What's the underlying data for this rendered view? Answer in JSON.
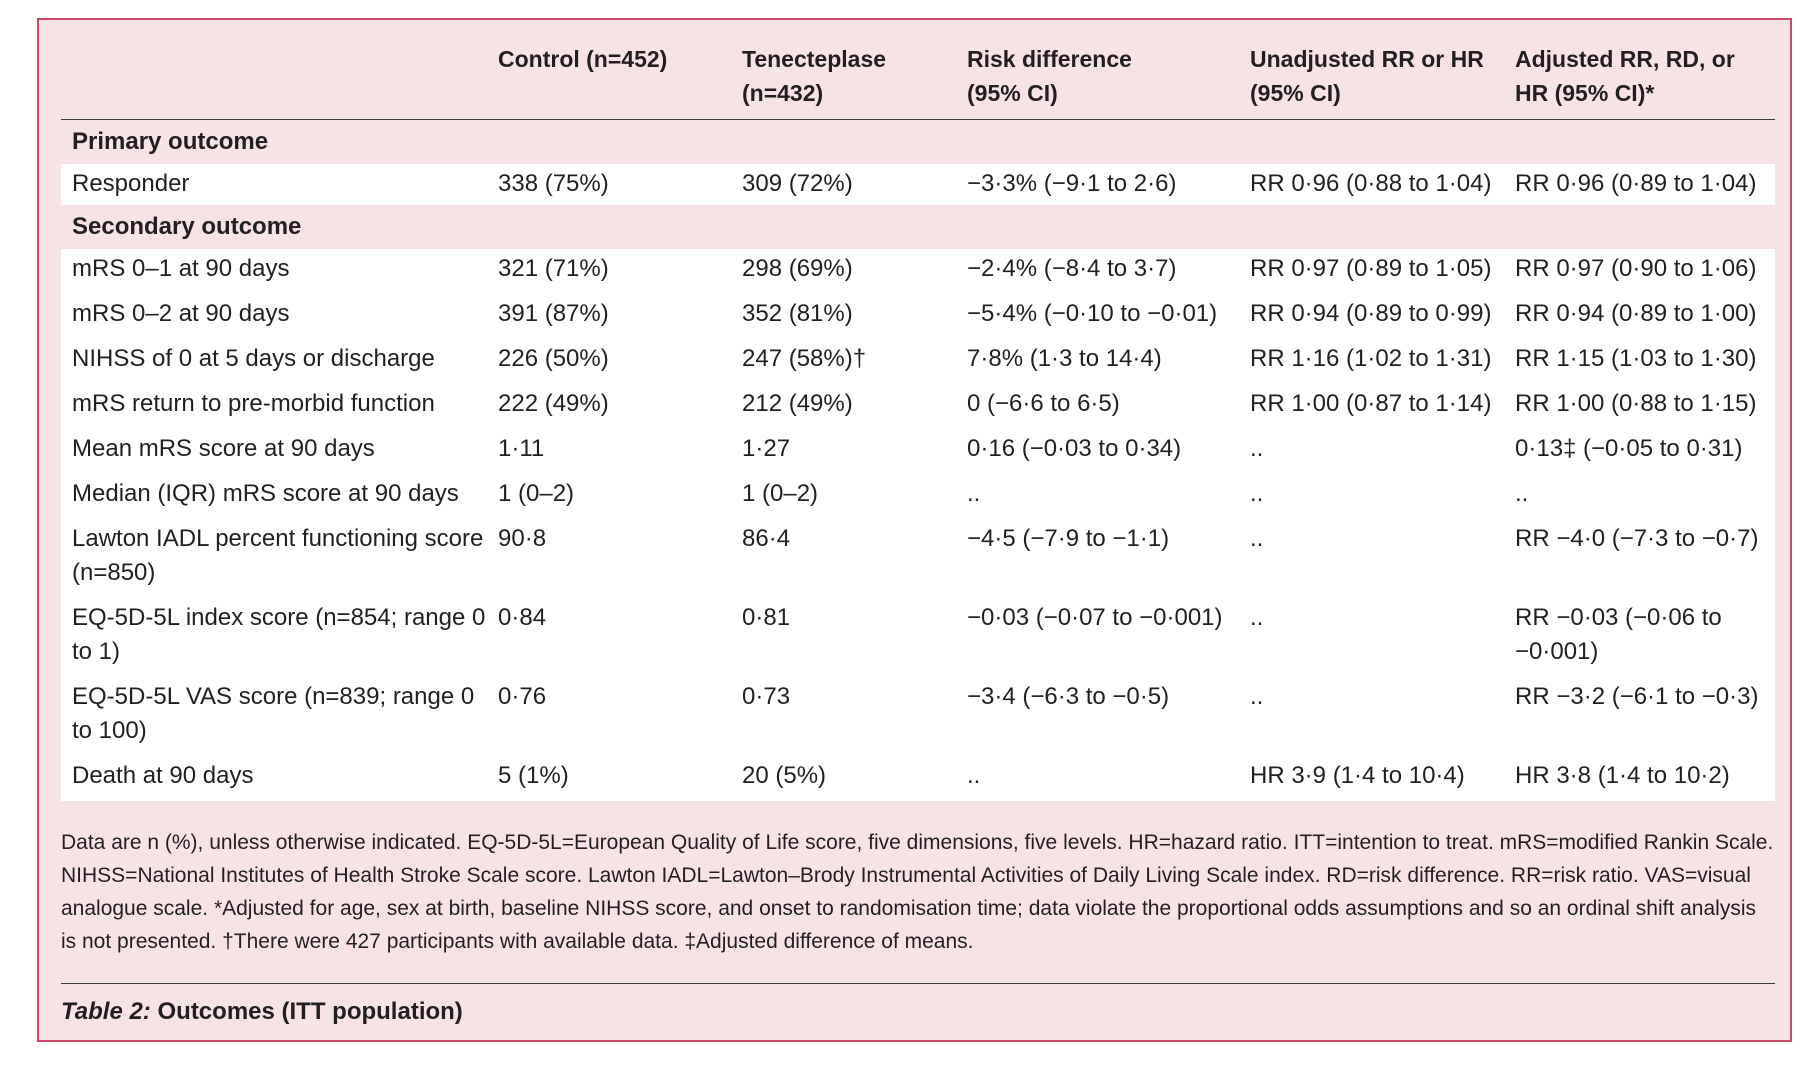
{
  "header": {
    "control": [
      "Control (n=452)",
      ""
    ],
    "tenecteplase": [
      "Tenecteplase",
      "(n=432)"
    ],
    "risk_difference": [
      "Risk difference",
      "(95% CI)"
    ],
    "unadjusted": [
      "Unadjusted RR or HR",
      "(95% CI)"
    ],
    "adjusted": [
      "Adjusted RR, RD, or",
      "HR (95% CI)*"
    ]
  },
  "sections": {
    "primary": "Primary outcome",
    "secondary": "Secondary outcome"
  },
  "primary_rows": [
    {
      "label": "Responder",
      "control": "338 (75%)",
      "tenecteplase": "309 (72%)",
      "rd": "−3·3% (−9·1 to 2·6)",
      "unadj": "RR 0·96 (0·88 to 1·04)",
      "adj": "RR 0·96 (0·89 to 1·04)"
    }
  ],
  "secondary_rows": [
    {
      "label": "mRS 0–1 at 90 days",
      "control": "321 (71%)",
      "tenecteplase": "298 (69%)",
      "rd": "−2·4% (−8·4 to 3·7)",
      "unadj": "RR 0·97 (0·89 to 1·05)",
      "adj": "RR 0·97 (0·90 to 1·06)"
    },
    {
      "label": "mRS 0–2 at 90 days",
      "control": "391 (87%)",
      "tenecteplase": "352 (81%)",
      "rd": "−5·4% (−0·10 to −0·01)",
      "unadj": "RR 0·94 (0·89 to 0·99)",
      "adj": "RR 0·94 (0·89 to 1·00)"
    },
    {
      "label": "NIHSS of 0 at 5 days or discharge",
      "control": "226 (50%)",
      "tenecteplase": "247 (58%)†",
      "rd": "7·8% (1·3 to 14·4)",
      "unadj": "RR 1·16 (1·02 to 1·31)",
      "adj": "RR 1·15 (1·03 to 1·30)"
    },
    {
      "label": "mRS return to pre-morbid function",
      "control": "222 (49%)",
      "tenecteplase": "212 (49%)",
      "rd": "0 (−6·6 to 6·5)",
      "unadj": "RR 1·00 (0·87 to 1·14)",
      "adj": "RR 1·00 (0·88 to 1·15)"
    },
    {
      "label": "Mean mRS score at 90 days",
      "control": "1·11",
      "tenecteplase": "1·27",
      "rd": "0·16 (−0·03 to 0·34)",
      "unadj": "..",
      "adj": "0·13‡ (−0·05 to 0·31)"
    },
    {
      "label": "Median (IQR) mRS score at 90 days",
      "control": "1 (0–2)",
      "tenecteplase": "1 (0–2)",
      "rd": "..",
      "unadj": "..",
      "adj": ".."
    },
    {
      "label": "Lawton IADL percent functioning score (n=850)",
      "control": "90·8",
      "tenecteplase": "86·4",
      "rd": "−4·5 (−7·9 to −1·1)",
      "unadj": "..",
      "adj": "RR −4·0 (−7·3 to −0·7)"
    },
    {
      "label": "EQ-5D-5L index score (n=854; range 0 to 1)",
      "control": "0·84",
      "tenecteplase": "0·81",
      "rd": "−0·03 (−0·07 to −0·001)",
      "unadj": "..",
      "adj": "RR −0·03 (−0·06 to −0·001)"
    },
    {
      "label": "EQ-5D-5L VAS score (n=839; range 0 to 100)",
      "control": "0·76",
      "tenecteplase": "0·73",
      "rd": "−3·4 (−6·3 to −0·5)",
      "unadj": "..",
      "adj": "RR −3·2 (−6·1 to −0·3)"
    },
    {
      "label": "Death at 90 days",
      "control": "5 (1%)",
      "tenecteplase": "20 (5%)",
      "rd": "..",
      "unadj": "HR 3·9 (1·4 to 10·4)",
      "adj": "HR 3·8 (1·4 to 10·2)"
    }
  ],
  "footnote": "Data are n (%), unless otherwise indicated. EQ-5D-5L=European Quality of Life score, five dimensions, five levels. HR=hazard ratio. ITT=intention to treat. mRS=modified Rankin Scale. NIHSS=National Institutes of Health Stroke Scale score. Lawton IADL=Lawton–Brody Instrumental Activities of Daily Living Scale index. RD=risk difference. RR=risk ratio. VAS=visual analogue scale. *Adjusted for age, sex at birth, baseline NIHSS score, and onset to randomisation time; data violate the proportional odds assumptions and so an ordinal shift analysis is not presented. †There were 427 participants with available data. ‡Adjusted difference of means.",
  "caption": {
    "label": "Table 2:",
    "title": "Outcomes (ITT population)"
  },
  "colors": {
    "panel_bg": "#f7e3e6",
    "panel_border": "#cd4869",
    "row_bg": "#ffffff"
  }
}
